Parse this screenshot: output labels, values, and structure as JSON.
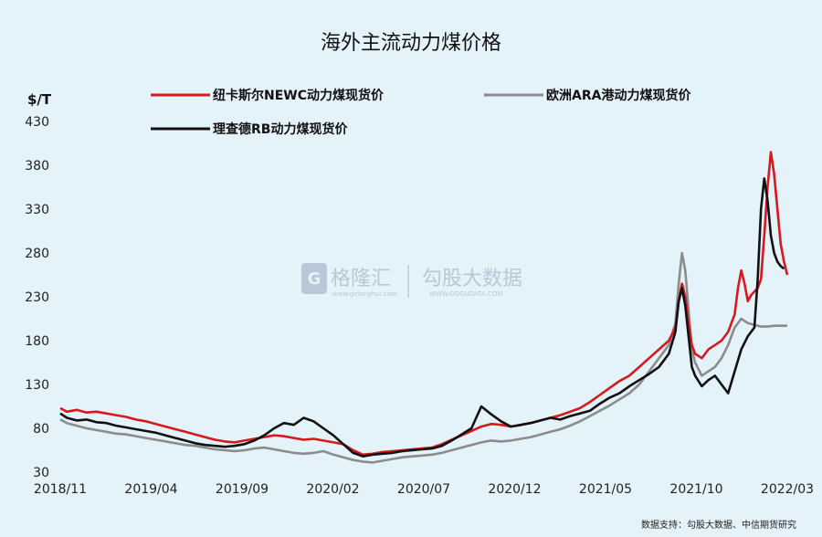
{
  "chart_data": {
    "type": "line",
    "title": "海外主流动力煤价格",
    "unit_label": "$/T",
    "ylim": [
      30,
      430
    ],
    "y_ticks": [
      "430",
      "380",
      "330",
      "280",
      "230",
      "180",
      "130",
      "80",
      "30"
    ],
    "x_ticks": [
      "2018/11",
      "2019/04",
      "2019/09",
      "2020/02",
      "2020/07",
      "2020/12",
      "2021/05",
      "2021/10",
      "2022/03"
    ],
    "series": [
      {
        "name": "纽卡斯尔NEWC动力煤现货价",
        "color": "#d7191c",
        "points": [
          [
            0,
            103
          ],
          [
            2,
            99
          ],
          [
            5,
            101
          ],
          [
            8,
            98
          ],
          [
            11,
            99
          ],
          [
            14,
            97
          ],
          [
            17,
            95
          ],
          [
            20,
            93
          ],
          [
            23,
            90
          ],
          [
            26,
            88
          ],
          [
            29,
            85
          ],
          [
            32,
            82
          ],
          [
            35,
            79
          ],
          [
            38,
            76
          ],
          [
            41,
            73
          ],
          [
            44,
            70
          ],
          [
            47,
            67
          ],
          [
            50,
            65
          ],
          [
            53,
            64
          ],
          [
            56,
            66
          ],
          [
            59,
            68
          ],
          [
            62,
            70
          ],
          [
            65,
            72
          ],
          [
            68,
            71
          ],
          [
            71,
            69
          ],
          [
            74,
            67
          ],
          [
            77,
            68
          ],
          [
            80,
            66
          ],
          [
            83,
            64
          ],
          [
            86,
            62
          ],
          [
            89,
            55
          ],
          [
            92,
            50
          ],
          [
            95,
            51
          ],
          [
            98,
            53
          ],
          [
            101,
            54
          ],
          [
            104,
            55
          ],
          [
            107,
            56
          ],
          [
            110,
            57
          ],
          [
            113,
            58
          ],
          [
            116,
            62
          ],
          [
            119,
            67
          ],
          [
            122,
            72
          ],
          [
            125,
            77
          ],
          [
            128,
            82
          ],
          [
            131,
            85
          ],
          [
            134,
            84
          ],
          [
            137,
            82
          ],
          [
            140,
            84
          ],
          [
            143,
            86
          ],
          [
            146,
            89
          ],
          [
            149,
            92
          ],
          [
            152,
            95
          ],
          [
            155,
            99
          ],
          [
            158,
            103
          ],
          [
            161,
            110
          ],
          [
            164,
            118
          ],
          [
            167,
            126
          ],
          [
            170,
            134
          ],
          [
            173,
            140
          ],
          [
            176,
            150
          ],
          [
            179,
            160
          ],
          [
            182,
            170
          ],
          [
            185,
            180
          ],
          [
            187,
            195
          ],
          [
            188,
            225
          ],
          [
            189,
            245
          ],
          [
            190,
            230
          ],
          [
            191,
            200
          ],
          [
            192,
            175
          ],
          [
            193,
            165
          ],
          [
            195,
            160
          ],
          [
            197,
            170
          ],
          [
            199,
            175
          ],
          [
            201,
            180
          ],
          [
            203,
            190
          ],
          [
            205,
            210
          ],
          [
            206,
            240
          ],
          [
            207,
            260
          ],
          [
            208,
            245
          ],
          [
            209,
            225
          ],
          [
            210,
            232
          ],
          [
            212,
            240
          ],
          [
            213,
            250
          ],
          [
            214,
            300
          ],
          [
            215,
            355
          ],
          [
            216,
            395
          ],
          [
            217,
            370
          ],
          [
            218,
            330
          ],
          [
            219,
            290
          ],
          [
            220,
            270
          ],
          [
            221,
            255
          ]
        ]
      },
      {
        "name": "欧洲ARA港动力煤现货价",
        "color": "#8c8c8c",
        "points": [
          [
            0,
            90
          ],
          [
            2,
            86
          ],
          [
            5,
            83
          ],
          [
            8,
            80
          ],
          [
            11,
            78
          ],
          [
            14,
            76
          ],
          [
            17,
            74
          ],
          [
            20,
            73
          ],
          [
            23,
            71
          ],
          [
            26,
            69
          ],
          [
            29,
            67
          ],
          [
            32,
            65
          ],
          [
            35,
            63
          ],
          [
            38,
            61
          ],
          [
            41,
            60
          ],
          [
            44,
            58
          ],
          [
            47,
            56
          ],
          [
            50,
            55
          ],
          [
            53,
            54
          ],
          [
            56,
            55
          ],
          [
            59,
            57
          ],
          [
            62,
            58
          ],
          [
            65,
            56
          ],
          [
            68,
            54
          ],
          [
            71,
            52
          ],
          [
            74,
            51
          ],
          [
            77,
            52
          ],
          [
            80,
            54
          ],
          [
            83,
            50
          ],
          [
            86,
            47
          ],
          [
            89,
            44
          ],
          [
            92,
            42
          ],
          [
            95,
            41
          ],
          [
            98,
            43
          ],
          [
            101,
            45
          ],
          [
            104,
            47
          ],
          [
            107,
            48
          ],
          [
            110,
            49
          ],
          [
            113,
            50
          ],
          [
            116,
            52
          ],
          [
            119,
            55
          ],
          [
            122,
            58
          ],
          [
            125,
            61
          ],
          [
            128,
            64
          ],
          [
            131,
            66
          ],
          [
            134,
            65
          ],
          [
            137,
            66
          ],
          [
            140,
            68
          ],
          [
            143,
            70
          ],
          [
            146,
            73
          ],
          [
            149,
            76
          ],
          [
            152,
            79
          ],
          [
            155,
            83
          ],
          [
            158,
            88
          ],
          [
            161,
            94
          ],
          [
            164,
            100
          ],
          [
            167,
            106
          ],
          [
            170,
            113
          ],
          [
            173,
            120
          ],
          [
            176,
            130
          ],
          [
            179,
            145
          ],
          [
            182,
            160
          ],
          [
            185,
            175
          ],
          [
            187,
            200
          ],
          [
            188,
            245
          ],
          [
            189,
            280
          ],
          [
            190,
            260
          ],
          [
            191,
            215
          ],
          [
            192,
            170
          ],
          [
            193,
            155
          ],
          [
            195,
            140
          ],
          [
            197,
            145
          ],
          [
            199,
            150
          ],
          [
            201,
            160
          ],
          [
            203,
            175
          ],
          [
            205,
            195
          ],
          [
            207,
            205
          ],
          [
            209,
            200
          ],
          [
            211,
            198
          ],
          [
            213,
            196
          ],
          [
            215,
            196
          ],
          [
            217,
            197
          ],
          [
            219,
            197
          ],
          [
            221,
            197
          ]
        ]
      },
      {
        "name": "理查德RB动力煤现货价",
        "color": "#111111",
        "points": [
          [
            0,
            97
          ],
          [
            2,
            92
          ],
          [
            5,
            89
          ],
          [
            8,
            90
          ],
          [
            11,
            87
          ],
          [
            14,
            86
          ],
          [
            17,
            83
          ],
          [
            20,
            81
          ],
          [
            23,
            79
          ],
          [
            26,
            77
          ],
          [
            29,
            75
          ],
          [
            32,
            72
          ],
          [
            35,
            69
          ],
          [
            38,
            66
          ],
          [
            41,
            63
          ],
          [
            44,
            61
          ],
          [
            47,
            60
          ],
          [
            50,
            59
          ],
          [
            53,
            60
          ],
          [
            56,
            62
          ],
          [
            59,
            66
          ],
          [
            62,
            72
          ],
          [
            65,
            80
          ],
          [
            68,
            86
          ],
          [
            71,
            84
          ],
          [
            74,
            92
          ],
          [
            77,
            88
          ],
          [
            80,
            80
          ],
          [
            83,
            72
          ],
          [
            86,
            62
          ],
          [
            89,
            52
          ],
          [
            92,
            48
          ],
          [
            95,
            50
          ],
          [
            98,
            51
          ],
          [
            101,
            52
          ],
          [
            104,
            54
          ],
          [
            107,
            55
          ],
          [
            110,
            56
          ],
          [
            113,
            57
          ],
          [
            116,
            60
          ],
          [
            119,
            66
          ],
          [
            122,
            73
          ],
          [
            125,
            80
          ],
          [
            128,
            105
          ],
          [
            131,
            96
          ],
          [
            134,
            88
          ],
          [
            137,
            82
          ],
          [
            140,
            84
          ],
          [
            143,
            86
          ],
          [
            146,
            89
          ],
          [
            149,
            92
          ],
          [
            152,
            90
          ],
          [
            155,
            94
          ],
          [
            158,
            97
          ],
          [
            161,
            100
          ],
          [
            164,
            108
          ],
          [
            167,
            115
          ],
          [
            170,
            120
          ],
          [
            173,
            128
          ],
          [
            176,
            135
          ],
          [
            179,
            142
          ],
          [
            182,
            150
          ],
          [
            185,
            165
          ],
          [
            187,
            190
          ],
          [
            188,
            225
          ],
          [
            189,
            240
          ],
          [
            190,
            220
          ],
          [
            191,
            185
          ],
          [
            192,
            150
          ],
          [
            193,
            140
          ],
          [
            195,
            128
          ],
          [
            197,
            135
          ],
          [
            199,
            140
          ],
          [
            201,
            130
          ],
          [
            203,
            120
          ],
          [
            205,
            145
          ],
          [
            207,
            170
          ],
          [
            209,
            185
          ],
          [
            211,
            195
          ],
          [
            212,
            250
          ],
          [
            213,
            330
          ],
          [
            214,
            365
          ],
          [
            215,
            340
          ],
          [
            216,
            300
          ],
          [
            217,
            280
          ],
          [
            218,
            270
          ],
          [
            219,
            265
          ],
          [
            220,
            262
          ]
        ]
      }
    ]
  },
  "watermark": {
    "brand_cn": "格隆汇",
    "brand_url": "www.gelonghui.com",
    "partner_cn": "勾股大数据",
    "partner_url": "WWW.GOGUDATA.COM"
  },
  "source_note": "数据支持：勾股大数据、中信期货研究"
}
